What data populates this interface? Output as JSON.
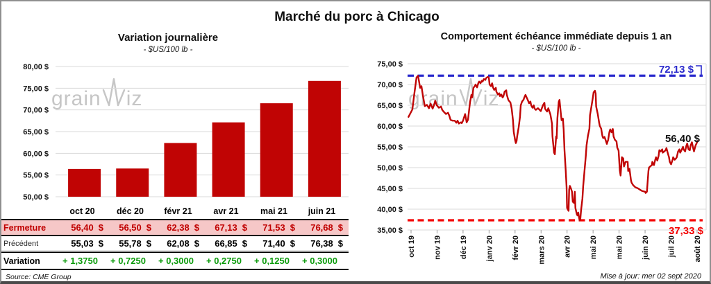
{
  "header": {
    "title": "Marché du porc à Chicago"
  },
  "footer": {
    "source": "Source: CME Group",
    "updated": "Mise à jour: mer 02 sept 2020"
  },
  "watermark": {
    "prefix": "grain",
    "suffix": "iz"
  },
  "colors": {
    "bar": "#c00404",
    "line": "#c00404",
    "max_line": "#2929cc",
    "min_line": "#f40000",
    "close_row_bg": "#f6c7c7",
    "close_text": "#c00000",
    "variation_text": "#0c9b0c",
    "grid": "#dadada"
  },
  "table": {
    "columns": [
      "oct 20",
      "déc 20",
      "févr 21",
      "avr 21",
      "mai 21",
      "juin 21"
    ],
    "rows": [
      {
        "style": "close",
        "label": "Fermeture",
        "suffix": "$",
        "values": [
          "56,40",
          "56,50",
          "62,38",
          "67,13",
          "71,53",
          "76,68"
        ]
      },
      {
        "style": "previous",
        "label": "Précédent",
        "suffix": "$",
        "values": [
          "55,03",
          "55,78",
          "62,08",
          "66,85",
          "71,40",
          "76,38"
        ]
      },
      {
        "style": "variation",
        "label": "Variation",
        "suffix": "",
        "values": [
          "+ 1,3750",
          "+ 0,7250",
          "+ 0,3000",
          "+ 0,2750",
          "+ 0,1250",
          "+ 0,3000"
        ]
      }
    ]
  },
  "chart_data": [
    {
      "type": "bar",
      "title": "Variation journalière",
      "subtitle": "- $US/100 lb -",
      "categories": [
        "oct 20",
        "déc 20",
        "févr 21",
        "avr 21",
        "mai 21",
        "juin 21"
      ],
      "values": [
        56.4,
        56.5,
        62.38,
        67.13,
        71.53,
        76.68
      ],
      "ylim": [
        50,
        80
      ],
      "ytick_values": [
        80,
        75,
        70,
        65,
        60,
        55,
        50
      ],
      "ytick_labels": [
        "80,00 $",
        "75,00 $",
        "70,00 $",
        "65,00 $",
        "60,00 $",
        "55,00 $",
        "50,00 $"
      ],
      "grid": true,
      "legend": "none"
    },
    {
      "type": "line",
      "title": "Comportement échéance immédiate depuis 1 an",
      "subtitle": "- $US/100 lb -",
      "x_tick_labels": [
        "oct 19",
        "nov 19",
        "déc 19",
        "janv 20",
        "févr 20",
        "mars 20",
        "avr 20",
        "mai 20",
        "mai 20",
        "juin 20",
        "juil 20",
        "août 20"
      ],
      "ylim": [
        35,
        75
      ],
      "ytick_values": [
        75,
        70,
        65,
        60,
        55,
        50,
        45,
        40,
        35
      ],
      "ytick_labels": [
        "75,00 $",
        "70,00 $",
        "65,00 $",
        "60,00 $",
        "55,00 $",
        "50,00 $",
        "45,00 $",
        "40,00 $",
        "35,00 $"
      ],
      "grid": true,
      "legend": "none",
      "max_line": {
        "value": 72.13,
        "label": "72,13 $"
      },
      "min_line": {
        "value": 37.33,
        "label": "37,33 $"
      },
      "last_point": {
        "value": 56.4,
        "label": "56,40 $"
      },
      "series": [
        {
          "points": [
            [
              -0.1,
              62.2
            ],
            [
              0.05,
              64.0
            ],
            [
              0.13,
              68.0
            ],
            [
              0.21,
              71.7
            ],
            [
              0.27,
              72.1
            ],
            [
              0.35,
              69.2
            ],
            [
              0.4,
              69.6
            ],
            [
              0.45,
              67.5
            ],
            [
              0.53,
              64.8
            ],
            [
              0.61,
              65.1
            ],
            [
              0.69,
              64.3
            ],
            [
              0.75,
              65.4
            ],
            [
              0.83,
              64.2
            ],
            [
              0.88,
              65.0
            ],
            [
              0.93,
              66.1
            ],
            [
              0.99,
              65.0
            ],
            [
              1.07,
              64.4
            ],
            [
              1.15,
              64.7
            ],
            [
              1.2,
              63.9
            ],
            [
              1.25,
              63.5
            ],
            [
              1.34,
              62.9
            ],
            [
              1.42,
              63.2
            ],
            [
              1.47,
              62.5
            ],
            [
              1.52,
              61.5
            ],
            [
              1.6,
              61.3
            ],
            [
              1.68,
              61.3
            ],
            [
              1.74,
              60.8
            ],
            [
              1.79,
              61.3
            ],
            [
              1.84,
              60.6
            ],
            [
              1.92,
              60.9
            ],
            [
              1.95,
              60.7
            ],
            [
              2.0,
              61.3
            ],
            [
              2.06,
              62.5
            ],
            [
              2.08,
              62.9
            ],
            [
              2.14,
              60.9
            ],
            [
              2.19,
              61.5
            ],
            [
              2.27,
              65.8
            ],
            [
              2.32,
              67.5
            ],
            [
              2.35,
              66.9
            ],
            [
              2.4,
              69.2
            ],
            [
              2.46,
              69.7
            ],
            [
              2.48,
              70.0
            ],
            [
              2.54,
              69.3
            ],
            [
              2.59,
              70.4
            ],
            [
              2.62,
              70.7
            ],
            [
              2.67,
              70.3
            ],
            [
              2.72,
              70.9
            ],
            [
              2.75,
              70.7
            ],
            [
              2.8,
              71.3
            ],
            [
              2.86,
              71.1
            ],
            [
              2.88,
              71.5
            ],
            [
              2.94,
              71.8
            ],
            [
              2.99,
              71.7
            ],
            [
              3.02,
              70.0
            ],
            [
              3.07,
              69.6
            ],
            [
              3.12,
              70.3
            ],
            [
              3.15,
              69.3
            ],
            [
              3.2,
              68.7
            ],
            [
              3.26,
              69.2
            ],
            [
              3.28,
              68.3
            ],
            [
              3.34,
              67.6
            ],
            [
              3.39,
              67.9
            ],
            [
              3.42,
              67.2
            ],
            [
              3.47,
              67.6
            ],
            [
              3.52,
              66.9
            ],
            [
              3.55,
              67.1
            ],
            [
              3.6,
              68.3
            ],
            [
              3.66,
              68.6
            ],
            [
              3.68,
              67.6
            ],
            [
              3.74,
              66.3
            ],
            [
              3.79,
              65.9
            ],
            [
              3.82,
              65.7
            ],
            [
              3.87,
              64.2
            ],
            [
              3.92,
              61.4
            ],
            [
              3.95,
              58.6
            ],
            [
              4.0,
              56.7
            ],
            [
              4.03,
              55.9
            ],
            [
              4.06,
              56.4
            ],
            [
              4.08,
              57.5
            ],
            [
              4.14,
              59.7
            ],
            [
              4.19,
              62.2
            ],
            [
              4.22,
              65.0
            ],
            [
              4.27,
              65.9
            ],
            [
              4.33,
              66.4
            ],
            [
              4.35,
              66.8
            ],
            [
              4.4,
              67.5
            ],
            [
              4.48,
              66.4
            ],
            [
              4.54,
              65.5
            ],
            [
              4.59,
              65.9
            ],
            [
              4.62,
              65.0
            ],
            [
              4.67,
              64.4
            ],
            [
              4.72,
              65.0
            ],
            [
              4.75,
              64.2
            ],
            [
              4.8,
              63.9
            ],
            [
              4.88,
              64.3
            ],
            [
              4.99,
              63.6
            ],
            [
              5.07,
              65.0
            ],
            [
              5.13,
              65.6
            ],
            [
              5.15,
              64.2
            ],
            [
              5.23,
              63.5
            ],
            [
              5.28,
              64.3
            ],
            [
              5.36,
              62.8
            ],
            [
              5.42,
              60.6
            ],
            [
              5.44,
              57.5
            ],
            [
              5.5,
              53.6
            ],
            [
              5.53,
              53.2
            ],
            [
              5.58,
              57.5
            ],
            [
              5.6,
              57.0
            ],
            [
              5.63,
              61.9
            ],
            [
              5.68,
              65.8
            ],
            [
              5.71,
              66.3
            ],
            [
              5.76,
              63.1
            ],
            [
              5.79,
              61.4
            ],
            [
              5.84,
              61.8
            ],
            [
              5.87,
              59.2
            ],
            [
              5.9,
              54.2
            ],
            [
              5.95,
              49.2
            ],
            [
              5.98,
              45.3
            ],
            [
              6.0,
              40.3
            ],
            [
              6.06,
              39.6
            ],
            [
              6.08,
              44.7
            ],
            [
              6.11,
              45.6
            ],
            [
              6.16,
              44.8
            ],
            [
              6.19,
              44.2
            ],
            [
              6.22,
              41.8
            ],
            [
              6.27,
              41.5
            ],
            [
              6.3,
              44.2
            ],
            [
              6.32,
              40.3
            ],
            [
              6.38,
              38.7
            ],
            [
              6.4,
              38.5
            ],
            [
              6.43,
              39.2
            ],
            [
              6.48,
              37.3
            ],
            [
              6.51,
              37.6
            ],
            [
              6.54,
              39.8
            ],
            [
              6.59,
              42.5
            ],
            [
              6.62,
              45.5
            ],
            [
              6.67,
              49.2
            ],
            [
              6.72,
              52.8
            ],
            [
              6.75,
              55.4
            ],
            [
              6.8,
              57.6
            ],
            [
              6.86,
              59.4
            ],
            [
              6.88,
              62.6
            ],
            [
              6.94,
              64.8
            ],
            [
              6.99,
              66.8
            ],
            [
              7.02,
              68.1
            ],
            [
              7.07,
              68.5
            ],
            [
              7.1,
              67.8
            ],
            [
              7.12,
              64.7
            ],
            [
              7.18,
              62.9
            ],
            [
              7.23,
              60.9
            ],
            [
              7.26,
              60.0
            ],
            [
              7.31,
              59.4
            ],
            [
              7.36,
              57.6
            ],
            [
              7.39,
              57.1
            ],
            [
              7.44,
              57.4
            ],
            [
              7.5,
              56.3
            ],
            [
              7.53,
              55.7
            ],
            [
              7.58,
              56.7
            ],
            [
              7.63,
              58.6
            ],
            [
              7.66,
              59.2
            ],
            [
              7.71,
              58.5
            ],
            [
              7.76,
              59.3
            ],
            [
              7.79,
              57.5
            ],
            [
              7.84,
              56.7
            ],
            [
              7.9,
              56.3
            ],
            [
              7.93,
              54.8
            ],
            [
              7.98,
              54.1
            ],
            [
              8.03,
              49.3
            ],
            [
              8.06,
              48.1
            ],
            [
              8.11,
              52.5
            ],
            [
              8.16,
              52.2
            ],
            [
              8.19,
              50.3
            ],
            [
              8.25,
              51.4
            ],
            [
              8.33,
              51.4
            ],
            [
              8.35,
              49.2
            ],
            [
              8.4,
              49.7
            ],
            [
              8.46,
              46.9
            ],
            [
              8.48,
              46.4
            ],
            [
              8.54,
              45.8
            ],
            [
              8.62,
              45.3
            ],
            [
              8.73,
              45.0
            ],
            [
              8.8,
              44.7
            ],
            [
              8.88,
              44.4
            ],
            [
              9.0,
              44.2
            ],
            [
              9.02,
              43.9
            ],
            [
              9.07,
              44.2
            ],
            [
              9.13,
              49.2
            ],
            [
              9.15,
              50.0
            ],
            [
              9.2,
              50.3
            ],
            [
              9.26,
              50.6
            ],
            [
              9.28,
              51.4
            ],
            [
              9.34,
              50.6
            ],
            [
              9.39,
              51.9
            ],
            [
              9.42,
              52.5
            ],
            [
              9.47,
              51.7
            ],
            [
              9.52,
              52.8
            ],
            [
              9.55,
              54.2
            ],
            [
              9.6,
              53.9
            ],
            [
              9.66,
              54.4
            ],
            [
              9.68,
              53.6
            ],
            [
              9.74,
              53.9
            ],
            [
              9.79,
              54.2
            ],
            [
              9.82,
              54.7
            ],
            [
              9.87,
              53.6
            ],
            [
              9.92,
              52.5
            ],
            [
              9.95,
              51.4
            ],
            [
              10.0,
              50.8
            ],
            [
              10.06,
              51.9
            ],
            [
              10.08,
              52.5
            ],
            [
              10.14,
              51.9
            ],
            [
              10.19,
              52.2
            ],
            [
              10.22,
              52.5
            ],
            [
              10.27,
              53.9
            ],
            [
              10.32,
              54.4
            ],
            [
              10.35,
              53.6
            ],
            [
              10.4,
              54.2
            ],
            [
              10.46,
              55.0
            ],
            [
              10.48,
              54.4
            ],
            [
              10.54,
              53.9
            ],
            [
              10.59,
              55.3
            ],
            [
              10.62,
              55.8
            ],
            [
              10.67,
              54.4
            ],
            [
              10.72,
              54.2
            ],
            [
              10.75,
              55.3
            ],
            [
              10.8,
              56.1
            ],
            [
              10.86,
              54.4
            ],
            [
              10.88,
              53.9
            ],
            [
              10.94,
              55.3
            ],
            [
              11.02,
              56.4
            ]
          ]
        }
      ]
    }
  ]
}
